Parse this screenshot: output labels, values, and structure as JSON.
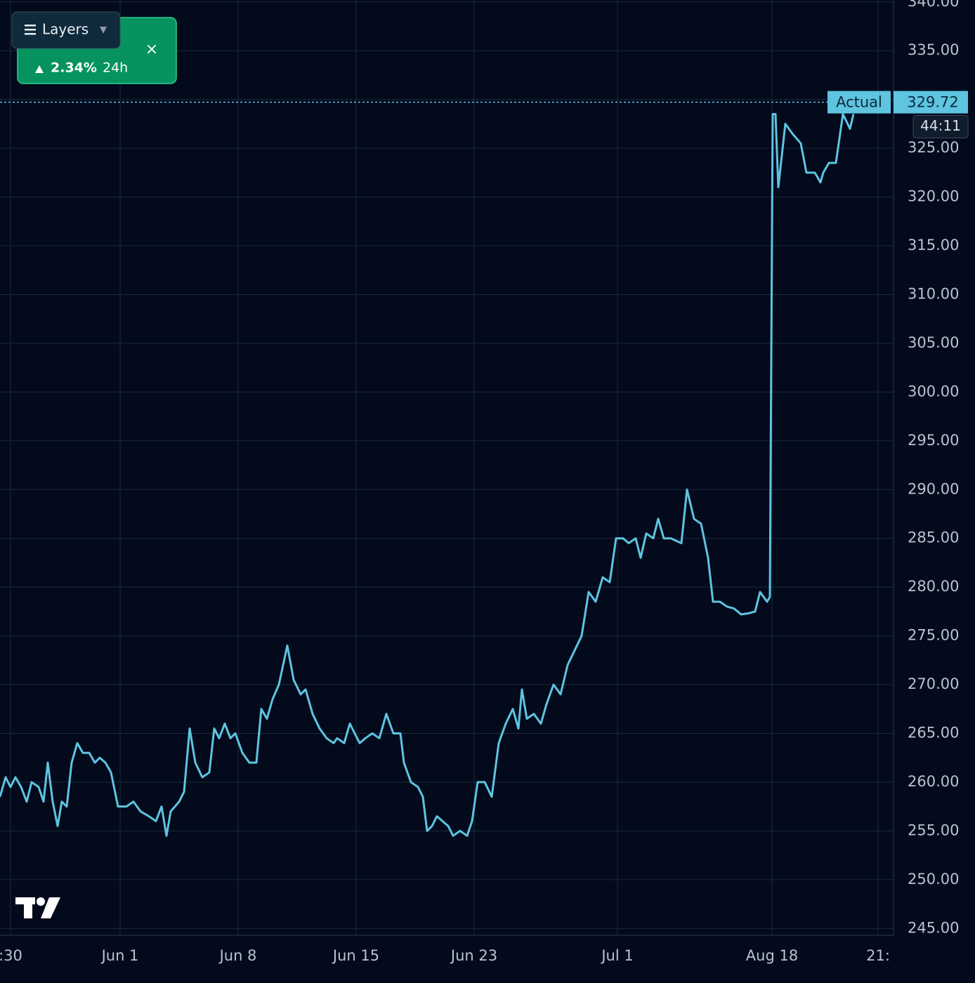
{
  "chart_data": {
    "type": "line",
    "series": [
      {
        "color": "#5ec4e0",
        "x": [
          0,
          1.6,
          3,
          4.4,
          6,
          7.6,
          9,
          11,
          12.4,
          13.6,
          15,
          16.4,
          17.6,
          19,
          20.4,
          22,
          23.6,
          25.4,
          27,
          28.4,
          30,
          31.6,
          33.6,
          36,
          38,
          40,
          42.4,
          44.4,
          46,
          47.4,
          48.6,
          51,
          52.4,
          54,
          55.6,
          57.6,
          59.6,
          61,
          62.4,
          64,
          65.6,
          67,
          69,
          71,
          73,
          74.4,
          76,
          77.6,
          79.4,
          81.8,
          83.6,
          85.6,
          87,
          89,
          91,
          93,
          95,
          96,
          98,
          99.6,
          101,
          102.4,
          104,
          106,
          108,
          110,
          112,
          114,
          115,
          117,
          119,
          120.4,
          121.6,
          123,
          124.4,
          126,
          127.6,
          129,
          131,
          133,
          134.4,
          136,
          138,
          140,
          142,
          144,
          146,
          147.6,
          148.6,
          150,
          152,
          154,
          155.6,
          157.6,
          159.6,
          161.6,
          163.6,
          165.6,
          167.6,
          169.6,
          171.6,
          173.6,
          175.4,
          177.4,
          179,
          181,
          182.4,
          184,
          186,
          187.4,
          189,
          191,
          194,
          195.6,
          197.6,
          199.6,
          201.6,
          203,
          205,
          207,
          209,
          211,
          213,
          215,
          216.4,
          218.4,
          219.2,
          220,
          220.8,
          221.6,
          223.6,
          225.6,
          228,
          229.6,
          232,
          233.6,
          234.4,
          236,
          238,
          240,
          242,
          243
        ],
        "values": [
          258.5,
          260.5,
          259.5,
          260.5,
          259.5,
          258,
          260,
          259.5,
          258,
          262,
          258,
          255.5,
          258,
          257.5,
          262,
          264,
          263,
          263,
          262,
          262.5,
          262,
          261,
          257.5,
          257.5,
          258,
          257,
          256.5,
          256,
          257.5,
          254.5,
          257,
          258,
          259,
          265.5,
          262,
          260.5,
          261,
          265.5,
          264.5,
          266,
          264.5,
          265,
          263,
          262,
          262,
          267.5,
          266.5,
          268.5,
          270,
          274,
          270.5,
          269,
          269.5,
          267,
          265.5,
          264.5,
          264,
          264.5,
          264,
          266,
          265,
          264,
          264.5,
          265,
          264.5,
          267,
          265,
          265,
          262,
          260,
          259.5,
          258.5,
          255,
          255.5,
          256.5,
          256,
          255.5,
          254.5,
          255,
          254.5,
          256,
          260,
          260,
          258.5,
          264,
          266,
          267.5,
          265.5,
          269.5,
          266.5,
          267,
          266,
          268,
          270,
          269,
          272,
          273.5,
          275,
          279.5,
          278.5,
          281,
          280.5,
          285,
          285,
          284.5,
          285,
          283,
          285.5,
          285,
          287,
          285,
          285,
          284.5,
          290,
          287,
          286.5,
          283,
          278.5,
          278.5,
          278,
          277.8,
          277.2,
          277.3,
          277.5,
          279.5,
          278.5,
          279,
          328.5,
          328.5,
          321,
          327.5,
          326.5,
          325.5,
          322.5,
          322.5,
          321.5,
          322.5,
          323.5,
          323.5,
          328.5,
          327,
          328.5
        ]
      }
    ],
    "xlim": [
      0,
      254.4
    ],
    "xticks": [
      {
        "value": 3,
        "label": ":30"
      },
      {
        "value": 34.2,
        "label": "Jun 1"
      },
      {
        "value": 67.8,
        "label": "Jun 8"
      },
      {
        "value": 101.4,
        "label": "Jun 15"
      },
      {
        "value": 135,
        "label": "Jun 23"
      },
      {
        "value": 175.8,
        "label": "Jul 1"
      },
      {
        "value": 219.8,
        "label": "Aug 18"
      },
      {
        "value": 250,
        "label": "21:"
      }
    ],
    "ylim": [
      244.3,
      340.2
    ],
    "yticks": [
      {
        "value": 245,
        "label": "245.00"
      },
      {
        "value": 250,
        "label": "250.00"
      },
      {
        "value": 255,
        "label": "255.00"
      },
      {
        "value": 260,
        "label": "260.00"
      },
      {
        "value": 265,
        "label": "265.00"
      },
      {
        "value": 270,
        "label": "270.00"
      },
      {
        "value": 275,
        "label": "275.00"
      },
      {
        "value": 280,
        "label": "280.00"
      },
      {
        "value": 285,
        "label": "285.00"
      },
      {
        "value": 290,
        "label": "290.00"
      },
      {
        "value": 295,
        "label": "295.00"
      },
      {
        "value": 300,
        "label": "300.00"
      },
      {
        "value": 305,
        "label": "305.00"
      },
      {
        "value": 310,
        "label": "310.00"
      },
      {
        "value": 315,
        "label": "315.00"
      },
      {
        "value": 320,
        "label": "320.00"
      },
      {
        "value": 325,
        "label": "325.00"
      },
      {
        "value": 330,
        "label": "330.00"
      },
      {
        "value": 335,
        "label": "335.00"
      },
      {
        "value": 340,
        "label": "340.00"
      }
    ],
    "grid": true,
    "current_label": "Actual",
    "current_value": 329.72,
    "countdown": "44:11"
  },
  "widget": {
    "layers_button": "Layers",
    "change": "2.34%",
    "period": "24h"
  }
}
